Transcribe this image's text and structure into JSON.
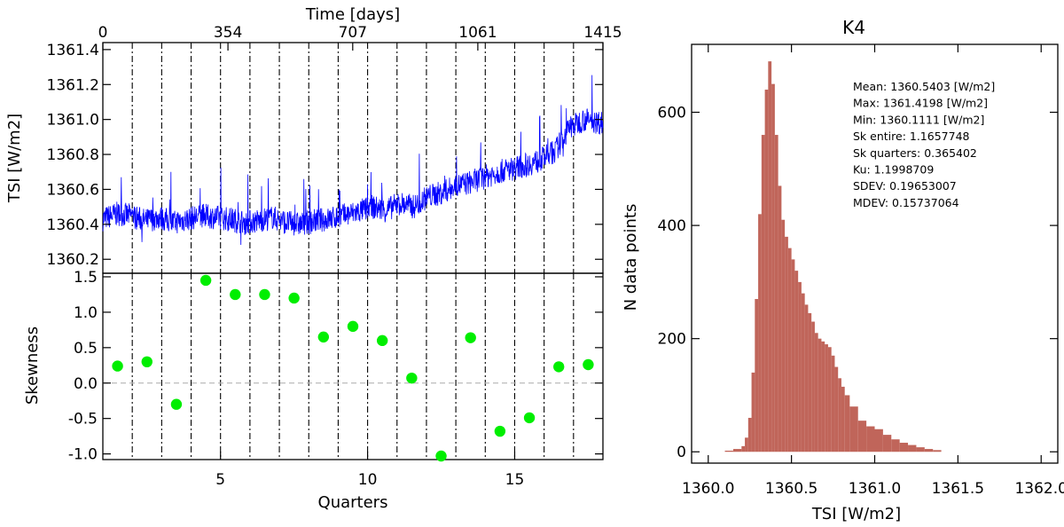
{
  "chart_data": [
    {
      "id": "tsi_timeseries",
      "type": "line",
      "ylabel": "TSI [W/m2]",
      "top_xlabel": "Time [days]",
      "top_xticks": [
        "0",
        "354",
        "707",
        "1061",
        "1415"
      ],
      "yticks": [
        "1360.2",
        "1360.4",
        "1360.6",
        "1360.8",
        "1361.0",
        "1361.2",
        "1361.4"
      ],
      "ylim": [
        1360.12,
        1361.44
      ],
      "xlim": [
        0,
        1415
      ],
      "series": [
        {
          "color": "#0000ff",
          "x": [
            0,
            40,
            80,
            120,
            160,
            200,
            240,
            280,
            320,
            360,
            400,
            440,
            480,
            520,
            560,
            600,
            640,
            680,
            720,
            760,
            800,
            840,
            880,
            920,
            960,
            1000,
            1040,
            1080,
            1120,
            1160,
            1200,
            1240,
            1280,
            1320,
            1360,
            1415
          ],
          "values": [
            1360.43,
            1360.46,
            1360.45,
            1360.42,
            1360.44,
            1360.41,
            1360.43,
            1360.45,
            1360.44,
            1360.43,
            1360.41,
            1360.42,
            1360.44,
            1360.41,
            1360.4,
            1360.42,
            1360.43,
            1360.45,
            1360.47,
            1360.5,
            1360.48,
            1360.52,
            1360.5,
            1360.56,
            1360.58,
            1360.62,
            1360.64,
            1360.67,
            1360.7,
            1360.72,
            1360.74,
            1360.77,
            1360.82,
            1360.95,
            1361.0,
            1360.98
          ]
        }
      ],
      "vlines_quarters": [
        2,
        3,
        4,
        5,
        6,
        7,
        8,
        9,
        10,
        11,
        12,
        13,
        14,
        15,
        16,
        17
      ]
    },
    {
      "id": "skewness",
      "type": "scatter",
      "xlabel": "Quarters",
      "ylabel": "Skewness",
      "xticks": [
        "5",
        "10",
        "15"
      ],
      "yticks": [
        "-1.0",
        "-0.5",
        "0.0",
        "0.5",
        "1.0",
        "1.5"
      ],
      "xlim": [
        1,
        18
      ],
      "ylim": [
        -1.08,
        1.55
      ],
      "zero_line": true,
      "vlines_quarters": [
        2,
        3,
        4,
        5,
        6,
        7,
        8,
        9,
        10,
        11,
        12,
        13,
        14,
        15,
        16,
        17
      ],
      "series": [
        {
          "color": "#00ee00",
          "x": [
            1.5,
            2.5,
            3.5,
            4.5,
            5.5,
            6.5,
            7.5,
            8.5,
            9.5,
            10.5,
            11.5,
            12.5,
            13.5,
            14.5,
            15.5,
            16.5,
            17.5
          ],
          "values": [
            0.24,
            0.3,
            -0.3,
            1.45,
            1.25,
            1.25,
            1.2,
            0.65,
            0.8,
            0.6,
            0.07,
            -1.03,
            0.64,
            -0.68,
            -0.49,
            0.23,
            0.26
          ]
        }
      ]
    },
    {
      "id": "histogram",
      "type": "bar",
      "title": "K4",
      "xlabel": "TSI [W/m2]",
      "ylabel": "N data points",
      "xticks": [
        "1360.0",
        "1360.5",
        "1361.0",
        "1361.5",
        "1362.0"
      ],
      "yticks": [
        "0",
        "200",
        "400",
        "600"
      ],
      "xlim": [
        1359.9,
        1362.1
      ],
      "ylim": [
        -20,
        720
      ],
      "bar_color": "#c0655a",
      "bins_x": [
        1360.1,
        1360.15,
        1360.2,
        1360.22,
        1360.24,
        1360.26,
        1360.28,
        1360.3,
        1360.32,
        1360.34,
        1360.36,
        1360.38,
        1360.4,
        1360.42,
        1360.44,
        1360.46,
        1360.48,
        1360.5,
        1360.52,
        1360.54,
        1360.56,
        1360.58,
        1360.6,
        1360.62,
        1360.64,
        1360.66,
        1360.68,
        1360.7,
        1360.72,
        1360.74,
        1360.76,
        1360.78,
        1360.8,
        1360.82,
        1360.85,
        1360.9,
        1360.95,
        1361.0,
        1361.05,
        1361.1,
        1361.15,
        1361.2,
        1361.25,
        1361.3,
        1361.35,
        1361.4
      ],
      "bins_y": [
        2,
        5,
        10,
        25,
        60,
        140,
        270,
        420,
        560,
        640,
        690,
        650,
        560,
        470,
        410,
        380,
        360,
        340,
        320,
        300,
        280,
        260,
        245,
        230,
        210,
        200,
        195,
        190,
        185,
        170,
        150,
        130,
        115,
        100,
        80,
        55,
        45,
        40,
        30,
        22,
        16,
        12,
        8,
        5,
        3,
        1
      ],
      "stats": [
        "Mean: 1360.5403 [W/m2]",
        "Max: 1361.4198 [W/m2]",
        "Min: 1360.1111 [W/m2]",
        "Sk entire: 1.1657748",
        "Sk quarters: 0.365402",
        "Ku: 1.1998709",
        "SDEV: 0.19653007",
        "MDEV: 0.15737064"
      ]
    }
  ]
}
